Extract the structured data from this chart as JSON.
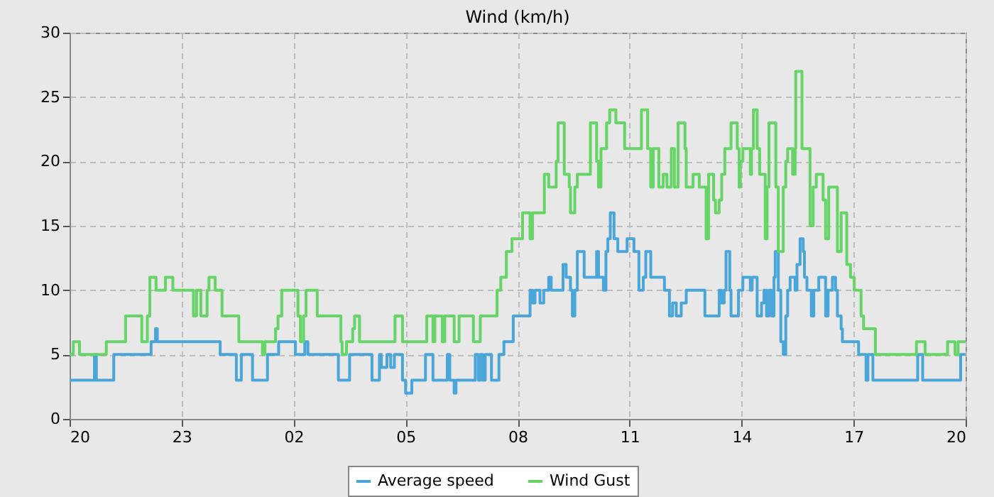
{
  "chart_data": {
    "type": "step",
    "title": "Wind (km/h)",
    "xlim": [
      "--01-01T20:00",
      "--01-02T20:00"
    ],
    "xticks": [
      {
        "value": "--01-01T20:00",
        "label": "20"
      },
      {
        "value": "--01-01T23:00",
        "label": "23"
      },
      {
        "value": "--01-02T02:00",
        "label": "02"
      },
      {
        "value": "--01-02T05:00",
        "label": "05"
      },
      {
        "value": "--01-02T08:00",
        "label": "08"
      },
      {
        "value": "--01-02T11:00",
        "label": "11"
      },
      {
        "value": "--01-02T14:00",
        "label": "14"
      },
      {
        "value": "--01-02T17:00",
        "label": "17"
      },
      {
        "value": "--01-02T20:00",
        "label": "20"
      }
    ],
    "ylim": [
      0,
      30
    ],
    "yticks": [
      0,
      5,
      10,
      15,
      20,
      25,
      30
    ],
    "grid": true,
    "legend": "bottom",
    "line_style": "solid",
    "marker": "none",
    "series": [
      {
        "name": "Average speed",
        "color": "#4aa6d9",
        "x": [
          "--01-01T20:00",
          "--01-01T20:40",
          "--01-01T20:43",
          "--01-01T21:11",
          "--01-01T22:11",
          "--01-01T22:18",
          "--01-01T22:21",
          "--01-02T00:02",
          "--01-02T00:28",
          "--01-02T00:36",
          "--01-02T00:54",
          "--01-02T01:18",
          "--01-02T01:36",
          "--01-02T02:03",
          "--01-02T02:18",
          "--01-02T02:23",
          "--01-02T03:12",
          "--01-02T03:30",
          "--01-02T04:06",
          "--01-02T04:18",
          "--01-02T04:21",
          "--01-02T04:30",
          "--01-02T04:36",
          "--01-02T04:42",
          "--01-02T04:55",
          "--01-02T05:00",
          "--01-02T05:10",
          "--01-02T05:32",
          "--01-02T05:44",
          "--01-02T06:07",
          "--01-02T06:11",
          "--01-02T06:18",
          "--01-02T06:21",
          "--01-02T06:52",
          "--01-02T06:57",
          "--01-02T07:00",
          "--01-02T07:04",
          "--01-02T07:08",
          "--01-02T07:18",
          "--01-02T07:30",
          "--01-02T07:38",
          "--01-02T07:53",
          "--01-02T08:20",
          "--01-02T08:24",
          "--01-02T08:28",
          "--01-02T08:36",
          "--01-02T08:42",
          "--01-02T08:50",
          "--01-02T08:54",
          "--01-02T09:13",
          "--01-02T09:18",
          "--01-02T09:25",
          "--01-02T09:28",
          "--01-02T09:32",
          "--01-02T09:36",
          "--01-02T09:47",
          "--01-02T10:07",
          "--01-02T10:10",
          "--01-02T10:18",
          "--01-02T10:22",
          "--01-02T10:25",
          "--01-02T10:29",
          "--01-02T10:35",
          "--01-02T10:41",
          "--01-02T10:56",
          "--01-02T11:07",
          "--01-02T11:15",
          "--01-02T11:22",
          "--01-02T11:26",
          "--01-02T11:34",
          "--01-02T11:56",
          "--01-02T12:04",
          "--01-02T12:09",
          "--01-02T12:15",
          "--01-02T12:23",
          "--01-02T12:31",
          "--01-02T13:01",
          "--01-02T13:24",
          "--01-02T13:28",
          "--01-02T13:32",
          "--01-02T13:35",
          "--01-02T13:41",
          "--01-02T13:43",
          "--01-02T13:55",
          "--01-02T14:02",
          "--01-02T14:14",
          "--01-02T14:17",
          "--01-02T14:25",
          "--01-02T14:32",
          "--01-02T14:36",
          "--01-02T14:40",
          "--01-02T14:44",
          "--01-02T14:48",
          "--01-02T14:52",
          "--01-02T14:54",
          "--01-02T14:59",
          "--01-02T15:03",
          "--01-02T15:07",
          "--01-02T15:11",
          "--01-02T15:14",
          "--01-02T15:18",
          "--01-02T15:26",
          "--01-02T15:29",
          "--01-02T15:34",
          "--01-02T15:39",
          "--01-02T15:41",
          "--01-02T15:45",
          "--01-02T15:52",
          "--01-02T15:56",
          "--01-02T16:04",
          "--01-02T16:15",
          "--01-02T16:19",
          "--01-02T16:26",
          "--01-02T16:31",
          "--01-02T16:34",
          "--01-02T16:40",
          "--01-02T16:42",
          "--01-02T17:08",
          "--01-02T17:20",
          "--01-02T17:23",
          "--01-02T17:31",
          "--01-02T18:43",
          "--01-02T18:51",
          "--01-02T19:52",
          "--01-02T20:00"
        ],
        "values": [
          3,
          5,
          3,
          5,
          6,
          7,
          6,
          5,
          3,
          5,
          3,
          5,
          6,
          5,
          6,
          5,
          3,
          5,
          3,
          5,
          4,
          5,
          4,
          5,
          3,
          2,
          3,
          5,
          3,
          5,
          3,
          2,
          3,
          5,
          3,
          5,
          3,
          5,
          3,
          5,
          6,
          8,
          10,
          9,
          10,
          9,
          10,
          11,
          10,
          12,
          11,
          10,
          8,
          10,
          13,
          11,
          13,
          11,
          10,
          13,
          14,
          16,
          14,
          13,
          14,
          13,
          10,
          11,
          13,
          11,
          10,
          8,
          9,
          8,
          9,
          10,
          8,
          10,
          9,
          10,
          13,
          10,
          8,
          10,
          11,
          10,
          11,
          8,
          9,
          10,
          8,
          10,
          8,
          11,
          13,
          10,
          6,
          5,
          8,
          10,
          11,
          10,
          12,
          14,
          13,
          11,
          10,
          8,
          10,
          11,
          8,
          10,
          11,
          10,
          8,
          7,
          6,
          5,
          3,
          5,
          3,
          5,
          3,
          5,
          5
        ]
      },
      {
        "name": "Wind Gust",
        "color": "#66d466",
        "x": [
          "--01-01T20:00",
          "--01-01T20:06",
          "--01-01T20:16",
          "--01-01T20:59",
          "--01-01T21:30",
          "--01-01T21:56",
          "--01-01T22:05",
          "--01-01T22:09",
          "--01-01T22:19",
          "--01-01T22:34",
          "--01-01T22:46",
          "--01-01T23:19",
          "--01-01T23:24",
          "--01-01T23:31",
          "--01-01T23:41",
          "--01-01T23:44",
          "--01-01T23:54",
          "--01-02T00:05",
          "--01-02T00:32",
          "--01-02T01:10",
          "--01-02T01:14",
          "--01-02T01:31",
          "--01-02T01:35",
          "--01-02T01:41",
          "--01-02T02:07",
          "--01-02T02:11",
          "--01-02T02:16",
          "--01-02T02:20",
          "--01-02T02:38",
          "--01-02T03:16",
          "--01-02T03:18",
          "--01-02T03:25",
          "--01-02T03:35",
          "--01-02T03:38",
          "--01-02T03:46",
          "--01-02T04:43",
          "--01-02T04:55",
          "--01-02T05:34",
          "--01-02T05:44",
          "--01-02T05:47",
          "--01-02T05:59",
          "--01-02T06:03",
          "--01-02T06:18",
          "--01-02T06:26",
          "--01-02T06:49",
          "--01-02T07:00",
          "--01-02T07:27",
          "--01-02T07:33",
          "--01-02T07:42",
          "--01-02T07:51",
          "--01-02T08:08",
          "--01-02T08:20",
          "--01-02T08:24",
          "--01-02T08:43",
          "--01-02T08:50",
          "--01-02T09:02",
          "--01-02T09:05",
          "--01-02T09:15",
          "--01-02T09:23",
          "--01-02T09:25",
          "--01-02T09:32",
          "--01-02T09:36",
          "--01-02T09:57",
          "--01-02T10:07",
          "--01-02T10:10",
          "--01-02T10:14",
          "--01-02T10:23",
          "--01-02T10:28",
          "--01-02T10:38",
          "--01-02T10:52",
          "--01-02T11:19",
          "--01-02T11:29",
          "--01-02T11:34",
          "--01-02T11:38",
          "--01-02T11:47",
          "--01-02T11:54",
          "--01-02T12:00",
          "--01-02T12:07",
          "--01-02T12:12",
          "--01-02T12:18",
          "--01-02T12:29",
          "--01-02T12:31",
          "--01-02T12:42",
          "--01-02T12:52",
          "--01-02T13:03",
          "--01-02T13:07",
          "--01-02T13:15",
          "--01-02T13:18",
          "--01-02T13:24",
          "--01-02T13:28",
          "--01-02T13:33",
          "--01-02T13:43",
          "--01-02T13:53",
          "--01-02T13:56",
          "--01-02T13:58",
          "--01-02T14:02",
          "--01-02T14:14",
          "--01-02T14:16",
          "--01-02T14:19",
          "--01-02T14:25",
          "--01-02T14:29",
          "--01-02T14:38",
          "--01-02T14:41",
          "--01-02T14:44",
          "--01-02T14:55",
          "--01-02T14:59",
          "--01-02T15:07",
          "--01-02T15:11",
          "--01-02T15:14",
          "--01-02T15:22",
          "--01-02T15:26",
          "--01-02T15:27",
          "--01-02T15:37",
          "--01-02T15:50",
          "--01-02T15:55",
          "--01-02T16:00",
          "--01-02T16:11",
          "--01-02T16:15",
          "--01-02T16:20",
          "--01-02T16:34",
          "--01-02T16:40",
          "--01-02T16:49",
          "--01-02T16:55",
          "--01-02T17:01",
          "--01-02T17:12",
          "--01-02T17:16",
          "--01-02T17:35",
          "--01-02T18:41",
          "--01-02T18:55",
          "--01-02T19:31",
          "--01-02T19:43",
          "--01-02T19:48",
          "--01-02T20:00"
        ],
        "values": [
          5,
          6,
          5,
          6,
          8,
          6,
          8,
          11,
          10,
          11,
          10,
          8,
          10,
          8,
          10,
          11,
          10,
          8,
          6,
          5,
          6,
          7,
          8,
          10,
          8,
          6,
          8,
          10,
          8,
          6,
          5,
          6,
          7,
          8,
          6,
          8,
          6,
          8,
          6,
          8,
          6,
          8,
          6,
          8,
          6,
          8,
          10,
          11,
          13,
          14,
          16,
          14,
          16,
          19,
          18,
          20,
          23,
          19,
          18,
          16,
          18,
          19,
          23,
          20,
          18,
          21,
          23,
          24,
          23,
          21,
          24,
          21,
          18,
          21,
          18,
          19,
          18,
          21,
          18,
          23,
          21,
          18,
          19,
          18,
          14,
          19,
          17,
          16,
          17,
          19,
          21,
          23,
          21,
          18,
          20,
          21,
          19,
          21,
          24,
          21,
          19,
          14,
          18,
          23,
          18,
          13,
          18,
          20,
          21,
          19,
          21,
          27,
          21,
          15,
          18,
          19,
          17,
          14,
          18,
          13,
          16,
          12,
          11,
          10,
          8,
          7,
          5,
          6,
          5,
          6,
          5,
          6,
          6
        ]
      }
    ]
  }
}
